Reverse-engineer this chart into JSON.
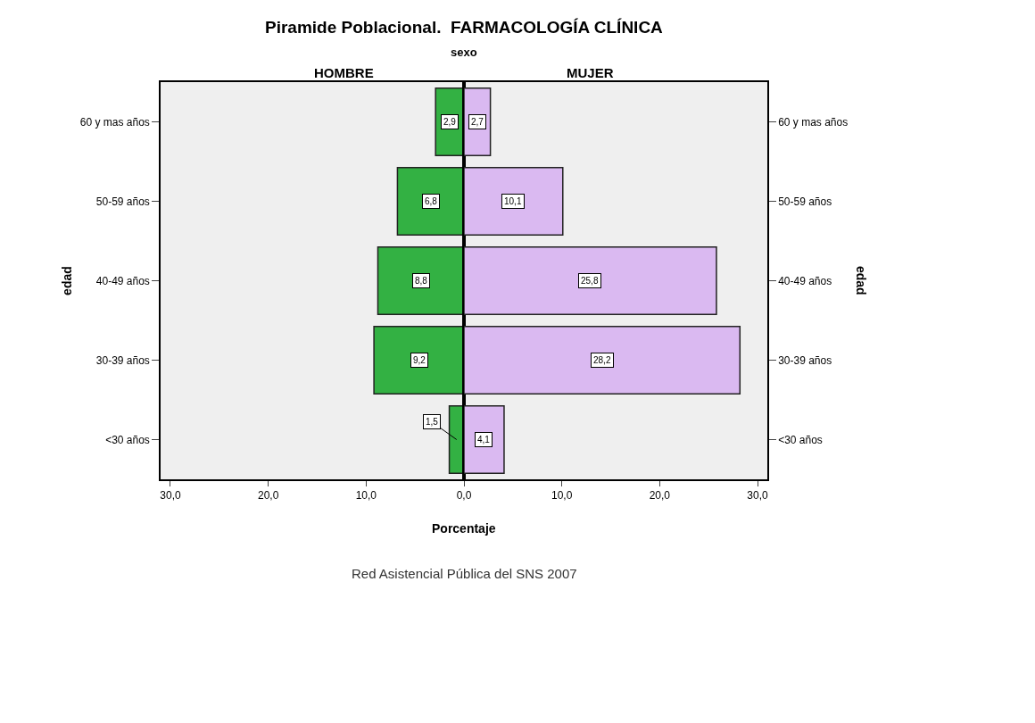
{
  "chart_data": [
    {
      "type": "bar",
      "orientation": "horizontal",
      "title": "HOMBRE",
      "xlabel": "Porcentaje",
      "ylabel": "edad",
      "annotations": [
        "Piramide Poblacional.  FARMACOLOGÍA CLÍNICA",
        "sexo"
      ],
      "categories": [
        "60 y mas años",
        "50-59 años",
        "40-49 años",
        "30-39 años",
        "<30 años"
      ],
      "series": [
        {
          "color": "#33b143",
          "values": [
            2.9,
            6.8,
            8.8,
            9.2,
            1.5
          ],
          "value_labels": [
            "2,9",
            "6,8",
            "8,8",
            "9,2",
            "1,5"
          ]
        }
      ],
      "xlim": [
        31,
        0
      ],
      "xticks": [
        {
          "value": 30,
          "label": "30,0"
        },
        {
          "value": 20,
          "label": "20,0"
        },
        {
          "value": 10,
          "label": "10,0"
        },
        {
          "value": 0,
          "label": "0,0"
        }
      ]
    },
    {
      "type": "bar",
      "orientation": "horizontal",
      "title": "MUJER",
      "ylabel": "edad",
      "annotations": [
        "Red Asistencial Pública del SNS 2007"
      ],
      "categories": [
        "60 y mas años",
        "50-59 años",
        "40-49 años",
        "30-39 años",
        "<30 años"
      ],
      "series": [
        {
          "color": "#dab9f1",
          "values": [
            2.7,
            10.1,
            25.8,
            28.2,
            4.1
          ],
          "value_labels": [
            "2,7",
            "10,1",
            "25,8",
            "28,2",
            "4,1"
          ]
        }
      ],
      "xlim": [
        0,
        31
      ],
      "xticks": [
        {
          "value": 10,
          "label": "10,0"
        },
        {
          "value": 20,
          "label": "20,0"
        },
        {
          "value": 30,
          "label": "30,0"
        }
      ]
    }
  ]
}
